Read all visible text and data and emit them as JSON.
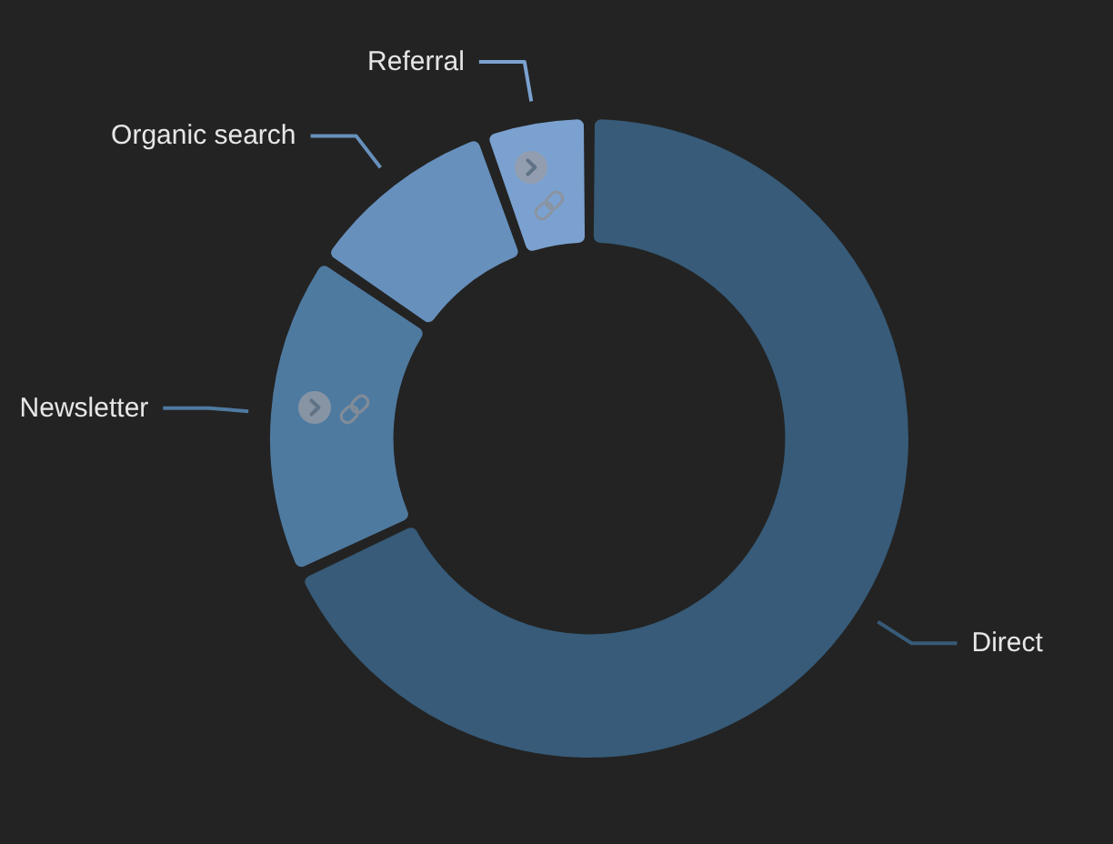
{
  "chart_data": {
    "type": "donut",
    "categories": [
      "Direct",
      "Newsletter",
      "Organic search",
      "Referral"
    ],
    "values": [
      68.5,
      16.4,
      9.9,
      5.2
    ],
    "colors": [
      "#375b78",
      "#4f7aa0",
      "#6790bd",
      "#7ba1d0"
    ]
  }
}
